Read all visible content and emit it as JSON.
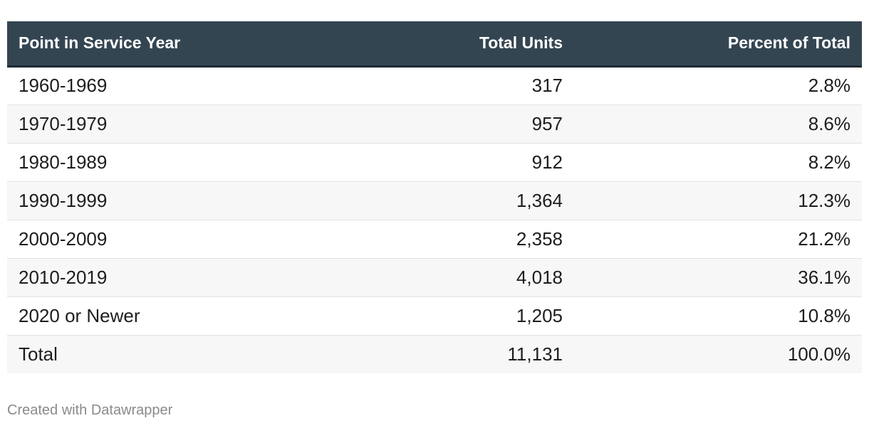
{
  "chart_data": {
    "type": "table",
    "columns": [
      "Point in Service Year",
      "Total Units",
      "Percent of Total"
    ],
    "rows": [
      {
        "year": "1960-1969",
        "units": "317",
        "percent": "2.8%"
      },
      {
        "year": "1970-1979",
        "units": "957",
        "percent": "8.6%"
      },
      {
        "year": "1980-1989",
        "units": "912",
        "percent": "8.2%"
      },
      {
        "year": "1990-1999",
        "units": "1,364",
        "percent": "12.3%"
      },
      {
        "year": "2000-2009",
        "units": "2,358",
        "percent": "21.2%"
      },
      {
        "year": "2010-2019",
        "units": "4,018",
        "percent": "36.1%"
      },
      {
        "year": "2020 or Newer",
        "units": "1,205",
        "percent": "10.8%"
      },
      {
        "year": "Total",
        "units": "11,131",
        "percent": "100.0%"
      }
    ],
    "header_color": "#344552"
  },
  "footer": {
    "credit": "Created with Datawrapper"
  }
}
